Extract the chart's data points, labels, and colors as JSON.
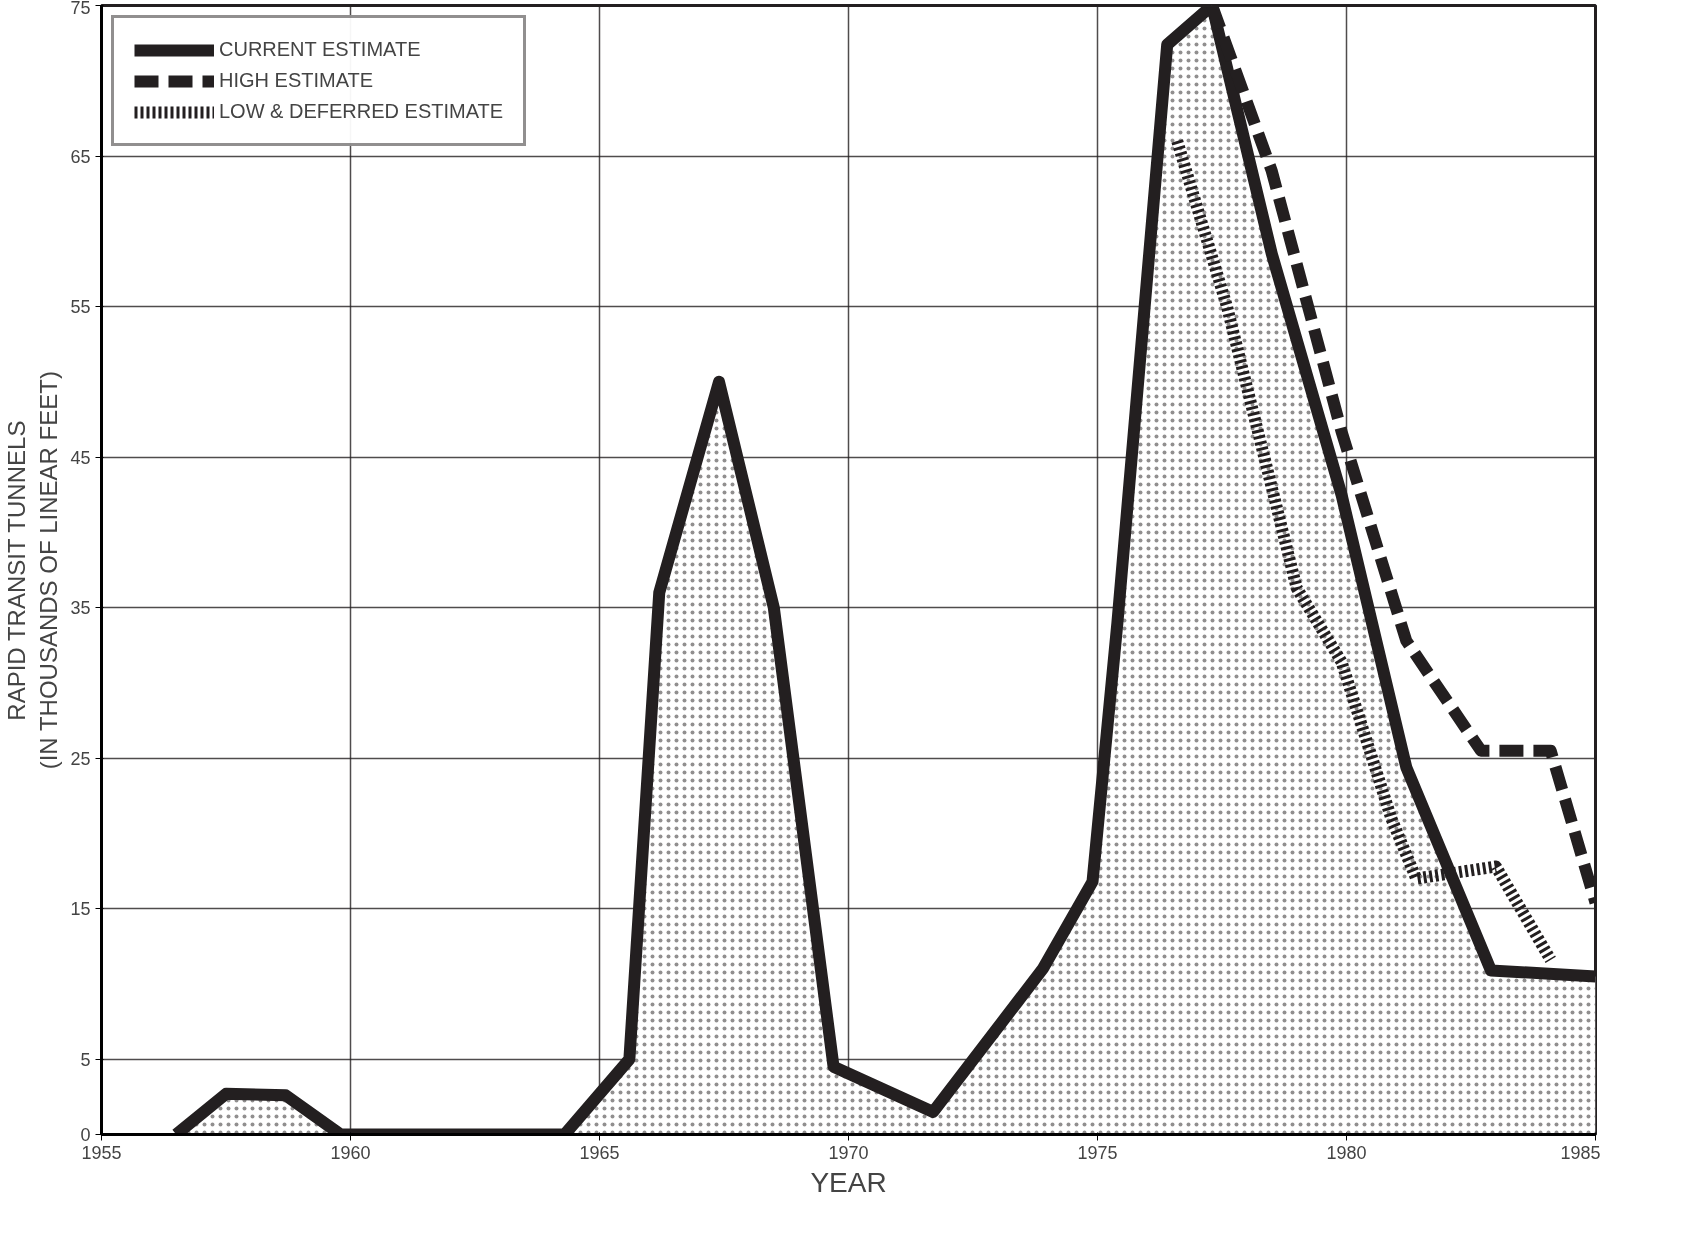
{
  "chart_data": {
    "type": "line",
    "xlabel": "YEAR",
    "ylabel": "RAPID TRANSIT TUNNELS\n(IN THOUSANDS OF LINEAR FEET)",
    "xlim": [
      1955,
      1985
    ],
    "ylim": [
      0,
      75
    ],
    "xticks": [
      1955,
      1960,
      1965,
      1970,
      1975,
      1980,
      1985
    ],
    "yticks": [
      0,
      5,
      15,
      25,
      35,
      45,
      55,
      65,
      75
    ],
    "grid": true,
    "legend": "top left",
    "marker": "none",
    "series": [
      {
        "name": "CURRENT ESTIMATE",
        "type": "area",
        "line_style": "solid",
        "color": "#231f20",
        "x": [
          1956.5,
          1957.5,
          1958.7,
          1959.8,
          1964.3,
          1965.6,
          1966.2,
          1967.4,
          1968.5,
          1969.7,
          1971.7,
          1973.9,
          1974.9,
          1975.4,
          1976.4,
          1977.3,
          1978.5,
          1979.9,
          1981.2,
          1982.9,
          1985
        ],
        "values": [
          0,
          2.7,
          2.6,
          0,
          0,
          5,
          36,
          50,
          35,
          4.5,
          1.5,
          11,
          16.8,
          34,
          72.4,
          75,
          58.5,
          42.5,
          24.4,
          10.9,
          10.5
        ]
      },
      {
        "name": "HIGH ESTIMATE",
        "line_style": "dashed",
        "color": "#231f20",
        "x": [
          1977.3,
          1978.5,
          1979.9,
          1981.2,
          1982.7,
          1984.1,
          1985
        ],
        "values": [
          75,
          64,
          46.7,
          32.8,
          25.5,
          25.5,
          15.4
        ]
      },
      {
        "name": "LOW & DEFERRED ESTIMATE",
        "line_style": "dotted",
        "color": "#231f20",
        "x": [
          1976.6,
          1977.6,
          1979,
          1979.9,
          1980.9,
          1981.4,
          1983,
          1984.1
        ],
        "values": [
          66,
          55,
          36.3,
          31.4,
          21,
          17,
          17.8,
          11.6
        ]
      }
    ]
  }
}
